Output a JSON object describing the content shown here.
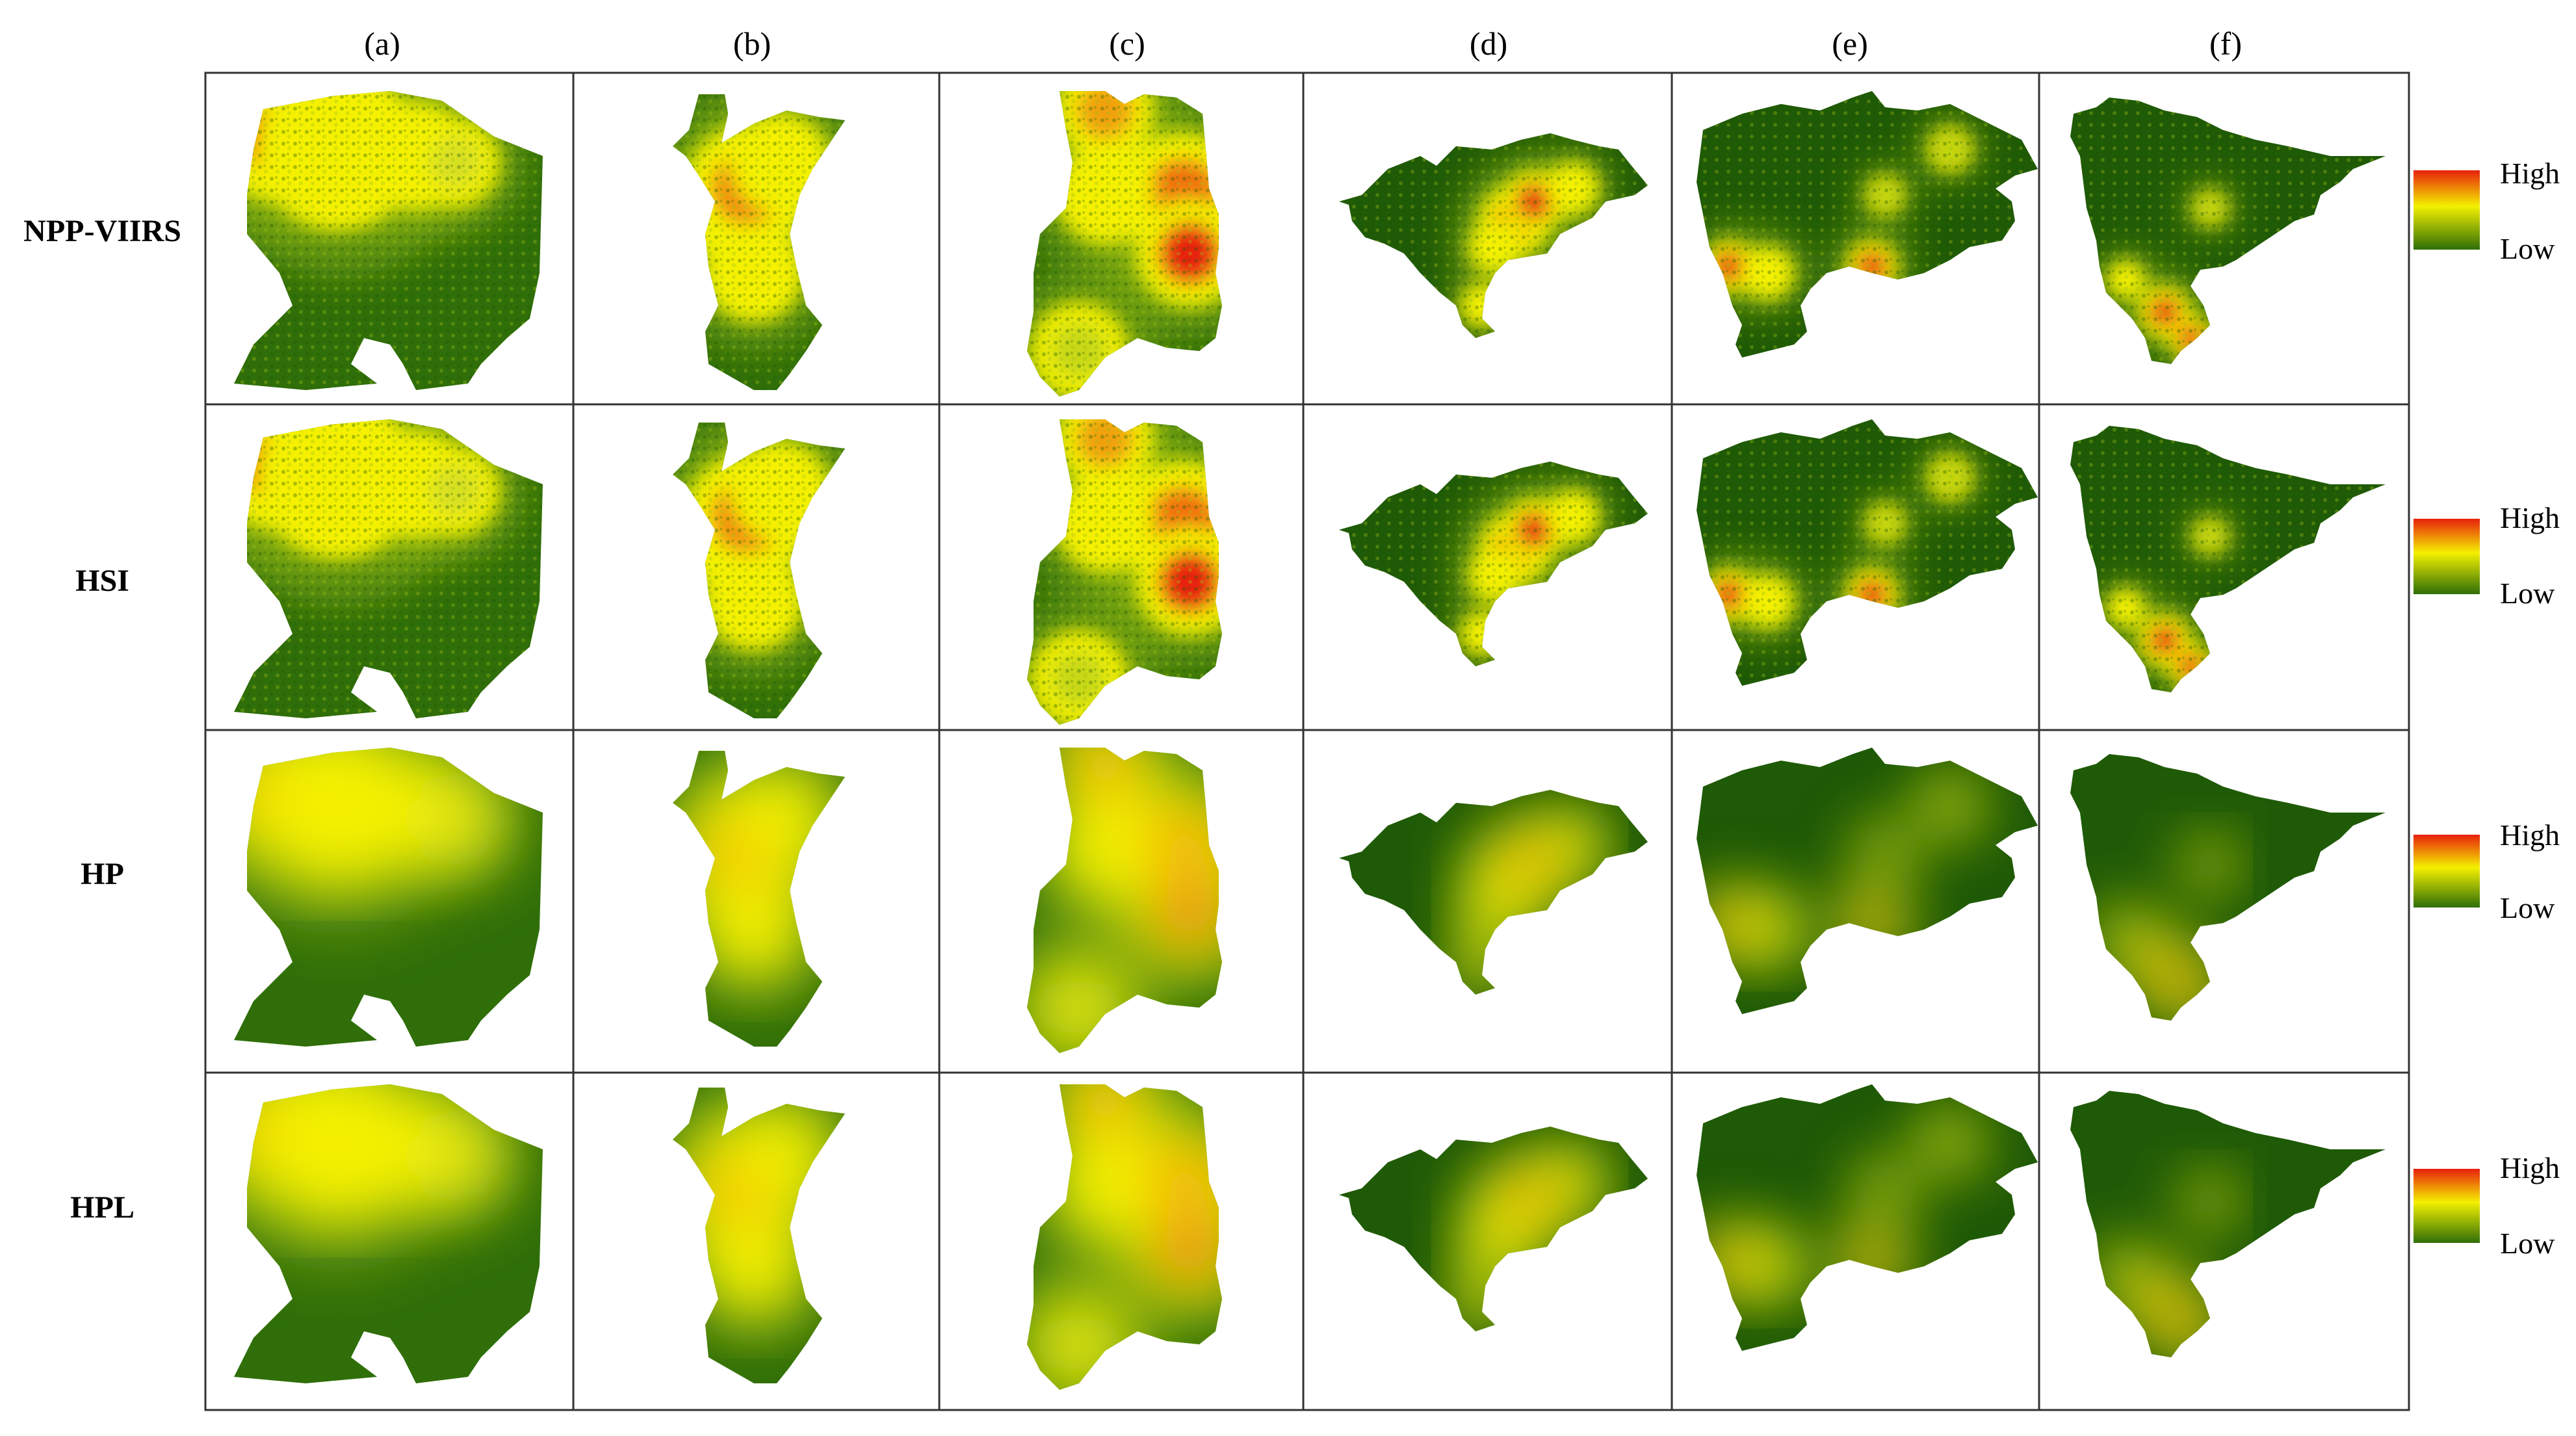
{
  "columns": [
    "(a)",
    "(b)",
    "(c)",
    "(d)",
    "(e)",
    "(f)"
  ],
  "rows": [
    "NPP-VIIRS",
    "HSI",
    "HP",
    "HPL"
  ],
  "legend": {
    "high": "High",
    "low": "Low"
  },
  "colors": {
    "high": "#e8200c",
    "mid": "#f4f000",
    "low": "#2f6e08",
    "dark": "#1f5a06"
  }
}
